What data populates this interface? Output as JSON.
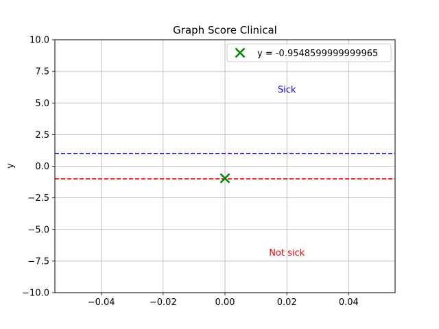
{
  "chart_data": {
    "type": "scatter",
    "title": "Graph Score Clinical",
    "xlabel": "",
    "ylabel": "y",
    "xlim": [
      -0.055,
      0.055
    ],
    "ylim": [
      -10,
      10
    ],
    "x_ticks": [
      -0.04,
      -0.02,
      0.0,
      0.02,
      0.04
    ],
    "x_tick_labels": [
      "−0.04",
      "−0.02",
      "0.00",
      "0.02",
      "0.04"
    ],
    "y_ticks": [
      10,
      7.5,
      5,
      2.5,
      0,
      -2.5,
      -5,
      -7.5,
      -10
    ],
    "y_tick_labels": [
      "10.0",
      "7.5",
      "5.0",
      "2.5",
      "0.0",
      "−2.5",
      "−5.0",
      "−7.5",
      "−10.0"
    ],
    "grid": true,
    "legend_position": "top-right",
    "series": [
      {
        "name": "y = -0.9548599999999965",
        "marker": "x",
        "color": "#008000",
        "x": [
          0.0
        ],
        "y": [
          -0.95486
        ]
      }
    ],
    "reference_lines": [
      {
        "y": 1,
        "color": "#0000ff",
        "style": "dashed"
      },
      {
        "y": -1,
        "color": "#ff0000",
        "style": "dashed"
      }
    ],
    "annotations": [
      {
        "text": "Sick",
        "x": 0.02,
        "y": 6.1,
        "color": "#0000ff"
      },
      {
        "text": "Not sick",
        "x": 0.02,
        "y": -6.8,
        "color": "#ff0000"
      }
    ]
  }
}
